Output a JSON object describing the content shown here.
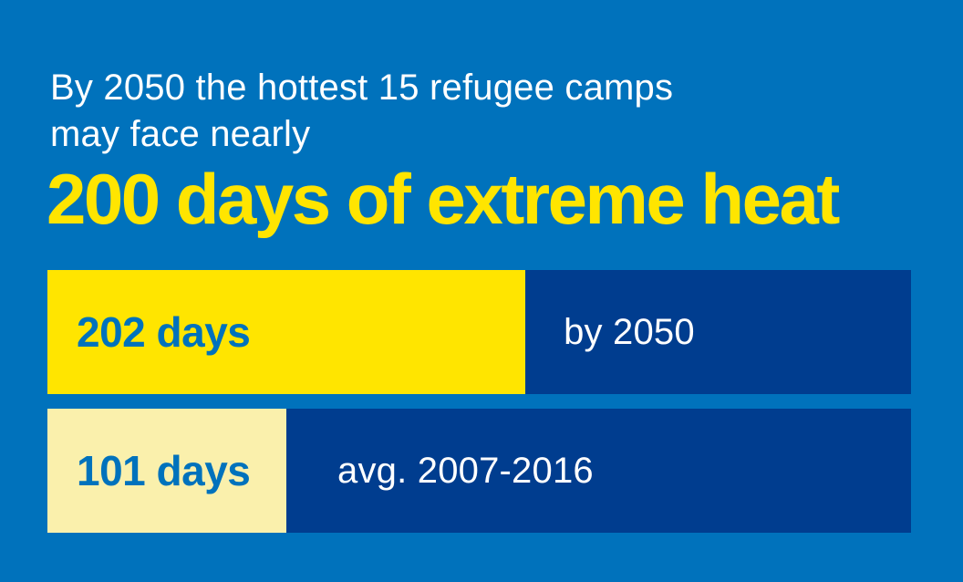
{
  "header": {
    "line1": "By 2050 the hottest 15 refugee camps",
    "line2": "may face nearly",
    "emphasis": "200 days of extreme heat"
  },
  "chart_data": {
    "type": "bar",
    "orientation": "horizontal",
    "title": "By 2050 the hottest 15 refugee camps may face nearly 200 days of extreme heat",
    "categories": [
      "by 2050",
      "avg. 2007-2016"
    ],
    "values": [
      202,
      101
    ],
    "value_labels": [
      "202 days",
      "101 days"
    ],
    "unit": "days",
    "xlim": [
      0,
      365
    ],
    "grid": false,
    "legend": false,
    "axis_labels_visible": false,
    "bar_colors": [
      "#FFE500",
      "#FAF0AC"
    ],
    "track_color": "#003D8F",
    "note": "bars drawn over a full-year (365 days) dark blue track"
  },
  "colors": {
    "background": "#0072BC",
    "track_navy": "#003D8F",
    "bar_yellow": "#FFE500",
    "bar_cream": "#FAF0AC",
    "value_text_blue": "#0072BC",
    "headline_white": "#FFFFFF",
    "emphasis_yellow": "#FFE500",
    "label_white": "#FFFFFF"
  }
}
